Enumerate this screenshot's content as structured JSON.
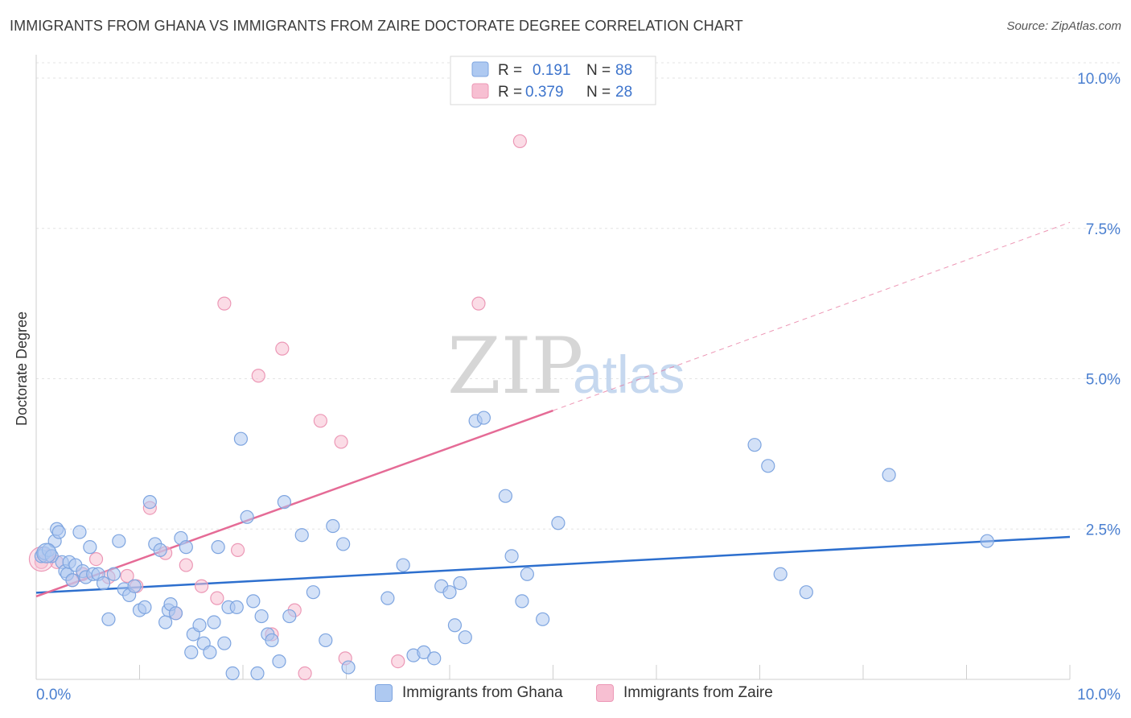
{
  "title": "IMMIGRANTS FROM GHANA VS IMMIGRANTS FROM ZAIRE DOCTORATE DEGREE CORRELATION CHART",
  "source": "Source: ZipAtlas.com",
  "watermark": {
    "zip": "ZIP",
    "atlas": "atlas"
  },
  "legend": {
    "rows": [
      {
        "r_label": "R =",
        "r_value": "0.191",
        "n_label": "N =",
        "n_value": "88"
      },
      {
        "r_label": "R =",
        "r_value": "0.379",
        "n_label": "N =",
        "n_value": "28"
      }
    ]
  },
  "bottom_legend": [
    "Immigrants from Ghana",
    "Immigrants from Zaire"
  ],
  "colors": {
    "ghana_fill": "#aec9f1",
    "ghana_stroke": "#7ea5e0",
    "ghana_line": "#2d6fce",
    "zaire_fill": "#f7bfd2",
    "zaire_stroke": "#ec98b6",
    "zaire_line": "#e56b96",
    "axis_text": "#4a7fd0",
    "grid": "#e3e3e3"
  },
  "chart_data": {
    "type": "scatter",
    "title": "IMMIGRANTS FROM GHANA VS IMMIGRANTS FROM ZAIRE DOCTORATE DEGREE CORRELATION CHART",
    "xlabel": "",
    "ylabel": "Doctorate Degree",
    "xlim": [
      0,
      10
    ],
    "ylim": [
      0,
      10
    ],
    "x_tick_labels": [
      "0.0%",
      "10.0%"
    ],
    "y_ticks": [
      {
        "value": 2.5,
        "label": "2.5%"
      },
      {
        "value": 5.0,
        "label": "5.0%"
      },
      {
        "value": 7.5,
        "label": "7.5%"
      },
      {
        "value": 10.0,
        "label": "10.0%"
      }
    ],
    "series": [
      {
        "name": "Immigrants from Ghana",
        "R": 0.191,
        "N": 88,
        "trend": {
          "x0": 0,
          "y0": 1.44,
          "x1": 10,
          "y1": 2.37
        },
        "points": [
          [
            0.05,
            2.05
          ],
          [
            0.08,
            2.1
          ],
          [
            0.12,
            2.15
          ],
          [
            0.15,
            2.05
          ],
          [
            0.18,
            2.3
          ],
          [
            0.2,
            2.5
          ],
          [
            0.25,
            1.95
          ],
          [
            0.28,
            1.8
          ],
          [
            0.3,
            1.75
          ],
          [
            0.32,
            1.95
          ],
          [
            0.35,
            1.65
          ],
          [
            0.38,
            1.9
          ],
          [
            0.42,
            2.45
          ],
          [
            0.45,
            1.8
          ],
          [
            0.48,
            1.7
          ],
          [
            0.52,
            2.2
          ],
          [
            0.55,
            1.75
          ],
          [
            0.6,
            1.75
          ],
          [
            0.65,
            1.6
          ],
          [
            0.7,
            1.0
          ],
          [
            0.75,
            1.75
          ],
          [
            0.8,
            2.3
          ],
          [
            0.85,
            1.5
          ],
          [
            0.9,
            1.4
          ],
          [
            0.95,
            1.55
          ],
          [
            1.0,
            1.15
          ],
          [
            1.05,
            1.2
          ],
          [
            1.1,
            2.95
          ],
          [
            1.15,
            2.25
          ],
          [
            1.2,
            2.15
          ],
          [
            1.25,
            0.95
          ],
          [
            1.28,
            1.15
          ],
          [
            1.3,
            1.25
          ],
          [
            1.35,
            1.1
          ],
          [
            1.4,
            2.35
          ],
          [
            1.45,
            2.2
          ],
          [
            1.5,
            0.45
          ],
          [
            1.52,
            0.75
          ],
          [
            1.58,
            0.9
          ],
          [
            1.62,
            0.6
          ],
          [
            1.68,
            0.45
          ],
          [
            1.72,
            0.95
          ],
          [
            1.76,
            2.2
          ],
          [
            1.82,
            0.6
          ],
          [
            1.86,
            1.2
          ],
          [
            1.9,
            0.1
          ],
          [
            1.94,
            1.2
          ],
          [
            1.98,
            4.0
          ],
          [
            2.04,
            2.7
          ],
          [
            2.1,
            1.3
          ],
          [
            2.14,
            0.1
          ],
          [
            2.18,
            1.05
          ],
          [
            2.24,
            0.75
          ],
          [
            2.28,
            0.65
          ],
          [
            2.35,
            0.3
          ],
          [
            2.4,
            2.95
          ],
          [
            2.45,
            1.05
          ],
          [
            2.57,
            2.4
          ],
          [
            2.68,
            1.45
          ],
          [
            2.8,
            0.65
          ],
          [
            2.87,
            2.55
          ],
          [
            2.97,
            2.25
          ],
          [
            3.02,
            0.2
          ],
          [
            3.4,
            1.35
          ],
          [
            3.55,
            1.9
          ],
          [
            3.65,
            0.4
          ],
          [
            3.75,
            0.45
          ],
          [
            3.85,
            0.35
          ],
          [
            3.92,
            1.55
          ],
          [
            4.0,
            1.45
          ],
          [
            4.05,
            0.9
          ],
          [
            4.15,
            0.7
          ],
          [
            4.1,
            1.6
          ],
          [
            4.25,
            4.3
          ],
          [
            4.33,
            4.35
          ],
          [
            4.54,
            3.05
          ],
          [
            4.6,
            2.05
          ],
          [
            4.7,
            1.3
          ],
          [
            4.75,
            1.75
          ],
          [
            4.9,
            1.0
          ],
          [
            5.05,
            2.6
          ],
          [
            6.95,
            3.9
          ],
          [
            7.08,
            3.55
          ],
          [
            7.2,
            1.75
          ],
          [
            7.45,
            1.45
          ],
          [
            8.25,
            3.4
          ],
          [
            9.2,
            2.3
          ],
          [
            0.22,
            2.45
          ]
        ]
      },
      {
        "name": "Immigrants from Zaire",
        "R": 0.379,
        "N": 28,
        "trend": {
          "x0": 0,
          "y0": 1.38,
          "x1": 5.0,
          "y1": 4.47
        },
        "trend_dashed": {
          "x0": 5.0,
          "y0": 4.47,
          "x1": 10,
          "y1": 7.6
        },
        "points": [
          [
            0.05,
            1.95
          ],
          [
            0.12,
            2.05
          ],
          [
            0.2,
            1.95
          ],
          [
            0.35,
            1.65
          ],
          [
            0.45,
            1.75
          ],
          [
            0.58,
            2.0
          ],
          [
            0.7,
            1.7
          ],
          [
            0.88,
            1.72
          ],
          [
            0.97,
            1.55
          ],
          [
            1.1,
            2.85
          ],
          [
            1.25,
            2.1
          ],
          [
            1.35,
            1.1
          ],
          [
            1.45,
            1.9
          ],
          [
            1.6,
            1.55
          ],
          [
            1.75,
            1.35
          ],
          [
            1.82,
            6.25
          ],
          [
            1.95,
            2.15
          ],
          [
            2.15,
            5.05
          ],
          [
            2.28,
            0.75
          ],
          [
            2.38,
            5.5
          ],
          [
            2.5,
            1.15
          ],
          [
            2.6,
            0.1
          ],
          [
            2.75,
            4.3
          ],
          [
            2.95,
            3.95
          ],
          [
            2.99,
            0.35
          ],
          [
            3.5,
            0.3
          ],
          [
            4.28,
            6.25
          ],
          [
            4.68,
            8.95
          ]
        ]
      }
    ]
  }
}
